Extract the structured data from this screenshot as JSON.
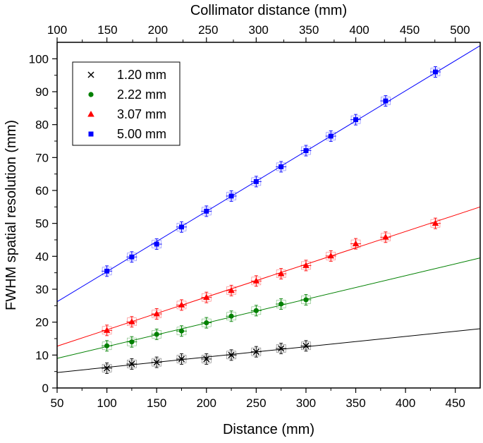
{
  "chart_data": {
    "type": "scatter",
    "xlabel": "Distance (mm)",
    "ylabel": "FWHM spatial resolution (mm)",
    "x2label": "Collimator distance (mm)",
    "xlim": [
      50,
      475
    ],
    "ylim": [
      0,
      105
    ],
    "x2lim": [
      100,
      520
    ],
    "xticks": [
      50,
      100,
      150,
      200,
      250,
      300,
      350,
      400,
      450
    ],
    "yticks": [
      0,
      10,
      20,
      30,
      40,
      50,
      60,
      70,
      80,
      90,
      100
    ],
    "x2ticks": [
      100,
      150,
      200,
      250,
      300,
      350,
      400,
      450,
      500
    ],
    "grid": false,
    "legend_position": "top-left",
    "series": [
      {
        "name": "1.20 mm",
        "color": "#000000",
        "marker": "x",
        "x": [
          100,
          125,
          150,
          175,
          200,
          225,
          250,
          275,
          300
        ],
        "y": [
          6.0,
          7.3,
          7.8,
          8.8,
          8.8,
          10.0,
          11.0,
          12.0,
          12.8
        ],
        "fit": {
          "x": [
            50,
            475
          ],
          "y": [
            4.7,
            18.0
          ]
        }
      },
      {
        "name": "2.22 mm",
        "color": "#008000",
        "marker": "circle",
        "x": [
          100,
          125,
          150,
          175,
          200,
          225,
          250,
          275,
          300
        ],
        "y": [
          12.8,
          14.0,
          16.3,
          17.3,
          19.8,
          21.8,
          23.5,
          25.5,
          26.8
        ],
        "fit": {
          "x": [
            50,
            475
          ],
          "y": [
            9.0,
            39.5
          ]
        }
      },
      {
        "name": "3.07 mm",
        "color": "#ff0000",
        "marker": "triangle",
        "x": [
          100,
          125,
          150,
          175,
          200,
          225,
          250,
          275,
          300,
          325,
          350,
          380,
          430
        ],
        "y": [
          17.5,
          20.1,
          22.5,
          25.2,
          27.5,
          29.6,
          32.5,
          34.7,
          37.2,
          40.1,
          43.8,
          45.8,
          50.0
        ],
        "fit": {
          "x": [
            50,
            475
          ],
          "y": [
            12.7,
            55.0
          ]
        }
      },
      {
        "name": "5.00 mm",
        "color": "#0000ff",
        "marker": "square",
        "x": [
          100,
          125,
          150,
          175,
          200,
          225,
          250,
          275,
          300,
          325,
          350,
          380,
          430
        ],
        "y": [
          35.5,
          39.8,
          43.7,
          48.9,
          53.7,
          58.3,
          62.7,
          67.2,
          72.1,
          76.5,
          81.5,
          87.2,
          96.0
        ],
        "fit": {
          "x": [
            50,
            475
          ],
          "y": [
            26.2,
            104.0
          ]
        }
      }
    ]
  }
}
